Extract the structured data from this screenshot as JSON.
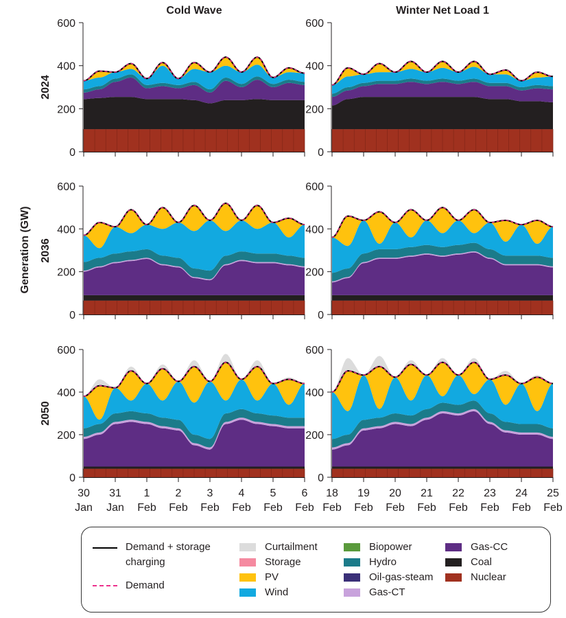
{
  "chart_data": {
    "type": "area",
    "stacked": true,
    "ylabel": "Generation (GW)",
    "ylim": [
      0,
      600
    ],
    "yticks": [
      0,
      200,
      400,
      600
    ],
    "columns": [
      "Cold Wave",
      "Winter Net Load 1"
    ],
    "rows": [
      "2024",
      "2036",
      "2050"
    ],
    "xtick_labels": [
      [
        [
          "30",
          "Jan"
        ],
        [
          "31",
          "Jan"
        ],
        [
          "1",
          "Feb"
        ],
        [
          "2",
          "Feb"
        ],
        [
          "3",
          "Feb"
        ],
        [
          "4",
          "Feb"
        ],
        [
          "5",
          "Feb"
        ],
        [
          "6",
          "Feb"
        ]
      ],
      [
        [
          "18",
          "Feb"
        ],
        [
          "19",
          "Feb"
        ],
        [
          "20",
          "Feb"
        ],
        [
          "21",
          "Feb"
        ],
        [
          "22",
          "Feb"
        ],
        [
          "23",
          "Feb"
        ],
        [
          "24",
          "Feb"
        ],
        [
          "25",
          "Feb"
        ]
      ]
    ],
    "sample_interval_hours": 12,
    "colors": {
      "nuclear": "#a0311f",
      "coal": "#231f20",
      "gas_cc": "#5e2d84",
      "oil_gas_steam": "#3a2f78",
      "gas_ct": "#c8a2dc",
      "hydro": "#1b7b8a",
      "biopower": "#5a9a3c",
      "wind": "#12a9e0",
      "pv": "#ffc20e",
      "storage": "#f58aa0",
      "curtailment": "#dcdcdc",
      "demand_storage": "#000000",
      "demand": "#ec2f8c"
    },
    "panels": [
      {
        "column": "Cold Wave",
        "row": "2024",
        "nuclear": 105,
        "coal": [
          140,
          145,
          150,
          150,
          140,
          140,
          140,
          135,
          120,
          135,
          135,
          140,
          135,
          135,
          135
        ],
        "gas_cc": [
          30,
          40,
          70,
          90,
          50,
          60,
          50,
          70,
          50,
          90,
          60,
          90,
          60,
          80,
          70
        ],
        "gas_ct": 0,
        "hydro": 15,
        "wind": [
          40,
          40,
          30,
          25,
          30,
          80,
          30,
          60,
          80,
          55,
          55,
          55,
          30,
          35,
          40
        ],
        "pv": [
          0,
          30,
          0,
          25,
          0,
          15,
          0,
          30,
          0,
          40,
          0,
          35,
          0,
          20,
          0
        ],
        "curtailment": 0,
        "demand": [
          330,
          375,
          370,
          410,
          340,
          415,
          340,
          415,
          370,
          440,
          370,
          440,
          345,
          390,
          365
        ]
      },
      {
        "column": "Winter Net Load 1",
        "row": "2024",
        "nuclear": 105,
        "coal": [
          110,
          140,
          150,
          150,
          150,
          150,
          150,
          150,
          150,
          150,
          140,
          140,
          130,
          130,
          125
        ],
        "gas_cc": [
          40,
          40,
          50,
          60,
          60,
          70,
          60,
          70,
          60,
          70,
          60,
          60,
          50,
          60,
          60
        ],
        "gas_ct": 0,
        "hydro": 15,
        "wind": [
          40,
          50,
          40,
          40,
          40,
          45,
          40,
          50,
          40,
          55,
          40,
          40,
          30,
          35,
          45
        ],
        "pv": [
          0,
          40,
          0,
          40,
          0,
          35,
          0,
          30,
          0,
          25,
          0,
          20,
          0,
          25,
          0
        ],
        "curtailment": 0,
        "demand": [
          310,
          390,
          360,
          410,
          370,
          420,
          370,
          420,
          370,
          420,
          360,
          380,
          330,
          370,
          350
        ]
      },
      {
        "column": "Cold Wave",
        "row": "2036",
        "nuclear": 65,
        "coal": 25,
        "gas_cc": [
          110,
          130,
          150,
          160,
          170,
          140,
          130,
          80,
          70,
          140,
          160,
          150,
          150,
          140,
          130
        ],
        "gas_ct": 5,
        "hydro": 40,
        "wind": [
          125,
          45,
          125,
          85,
          115,
          125,
          165,
          175,
          235,
          115,
          145,
          115,
          145,
          85,
          155
        ],
        "pv": [
          0,
          120,
          0,
          110,
          0,
          100,
          0,
          120,
          0,
          130,
          0,
          110,
          0,
          90,
          0
        ],
        "curtailment": 0,
        "demand": [
          370,
          430,
          410,
          490,
          420,
          500,
          430,
          510,
          440,
          520,
          440,
          510,
          430,
          450,
          420
        ]
      },
      {
        "column": "Winter Net Load 1",
        "row": "2036",
        "nuclear": 65,
        "coal": 25,
        "gas_cc": [
          60,
          80,
          150,
          170,
          170,
          180,
          190,
          180,
          190,
          200,
          170,
          140,
          140,
          140,
          130
        ],
        "gas_ct": 5,
        "hydro": 40,
        "wind": [
          165,
          105,
          155,
          25,
          125,
          45,
          115,
          65,
          115,
          45,
          125,
          65,
          145,
          55,
          145
        ],
        "pv": [
          0,
          140,
          0,
          150,
          0,
          130,
          0,
          120,
          0,
          110,
          0,
          100,
          0,
          110,
          0
        ],
        "curtailment": 0,
        "demand": [
          360,
          460,
          440,
          480,
          430,
          490,
          440,
          500,
          440,
          490,
          430,
          440,
          420,
          440,
          410
        ]
      },
      {
        "column": "Cold Wave",
        "row": "2050",
        "nuclear": 40,
        "coal": 10,
        "gas_cc": [
          130,
          150,
          200,
          210,
          200,
          180,
          170,
          100,
          80,
          200,
          220,
          200,
          190,
          180,
          180
        ],
        "gas_ct": 10,
        "hydro": 40,
        "wind": [
          150,
          20,
          120,
          50,
          140,
          80,
          180,
          150,
          270,
          60,
          140,
          60,
          150,
          60,
          160
        ],
        "pv": [
          0,
          160,
          0,
          140,
          0,
          150,
          0,
          170,
          0,
          180,
          0,
          160,
          0,
          120,
          0
        ],
        "curtailment": [
          0,
          30,
          0,
          20,
          0,
          20,
          0,
          30,
          0,
          40,
          0,
          30,
          0,
          10,
          0
        ],
        "demand": [
          380,
          430,
          420,
          500,
          440,
          510,
          450,
          520,
          450,
          540,
          460,
          520,
          440,
          460,
          440
        ]
      },
      {
        "column": "Winter Net Load 1",
        "row": "2050",
        "nuclear": 40,
        "coal": 10,
        "gas_cc": [
          80,
          100,
          170,
          180,
          200,
          190,
          220,
          250,
          240,
          260,
          200,
          160,
          150,
          150,
          130
        ],
        "gas_ct": 10,
        "hydro": 40,
        "wind": [
          220,
          110,
          210,
          40,
          170,
          70,
          160,
          30,
          140,
          30,
          160,
          80,
          190,
          60,
          210
        ],
        "pv": [
          0,
          190,
          0,
          200,
          0,
          170,
          0,
          160,
          0,
          150,
          0,
          140,
          0,
          160,
          0
        ],
        "curtailment": [
          0,
          60,
          0,
          50,
          0,
          20,
          0,
          20,
          0,
          20,
          0,
          20,
          0,
          10,
          0
        ],
        "demand": [
          400,
          500,
          480,
          520,
          470,
          530,
          480,
          540,
          480,
          540,
          460,
          480,
          440,
          470,
          440
        ]
      }
    ],
    "legend": {
      "demand_storage": "Demand + storage charging",
      "demand_storage_line1": "Demand + storage",
      "demand_storage_line2": "charging",
      "demand": "Demand",
      "curtailment": "Curtailment",
      "storage": "Storage",
      "pv": "PV",
      "wind": "Wind",
      "biopower": "Biopower",
      "hydro": "Hydro",
      "oil_gas_steam": "Oil-gas-steam",
      "gas_ct": "Gas-CT",
      "gas_cc": "Gas-CC",
      "coal": "Coal",
      "nuclear": "Nuclear"
    }
  }
}
